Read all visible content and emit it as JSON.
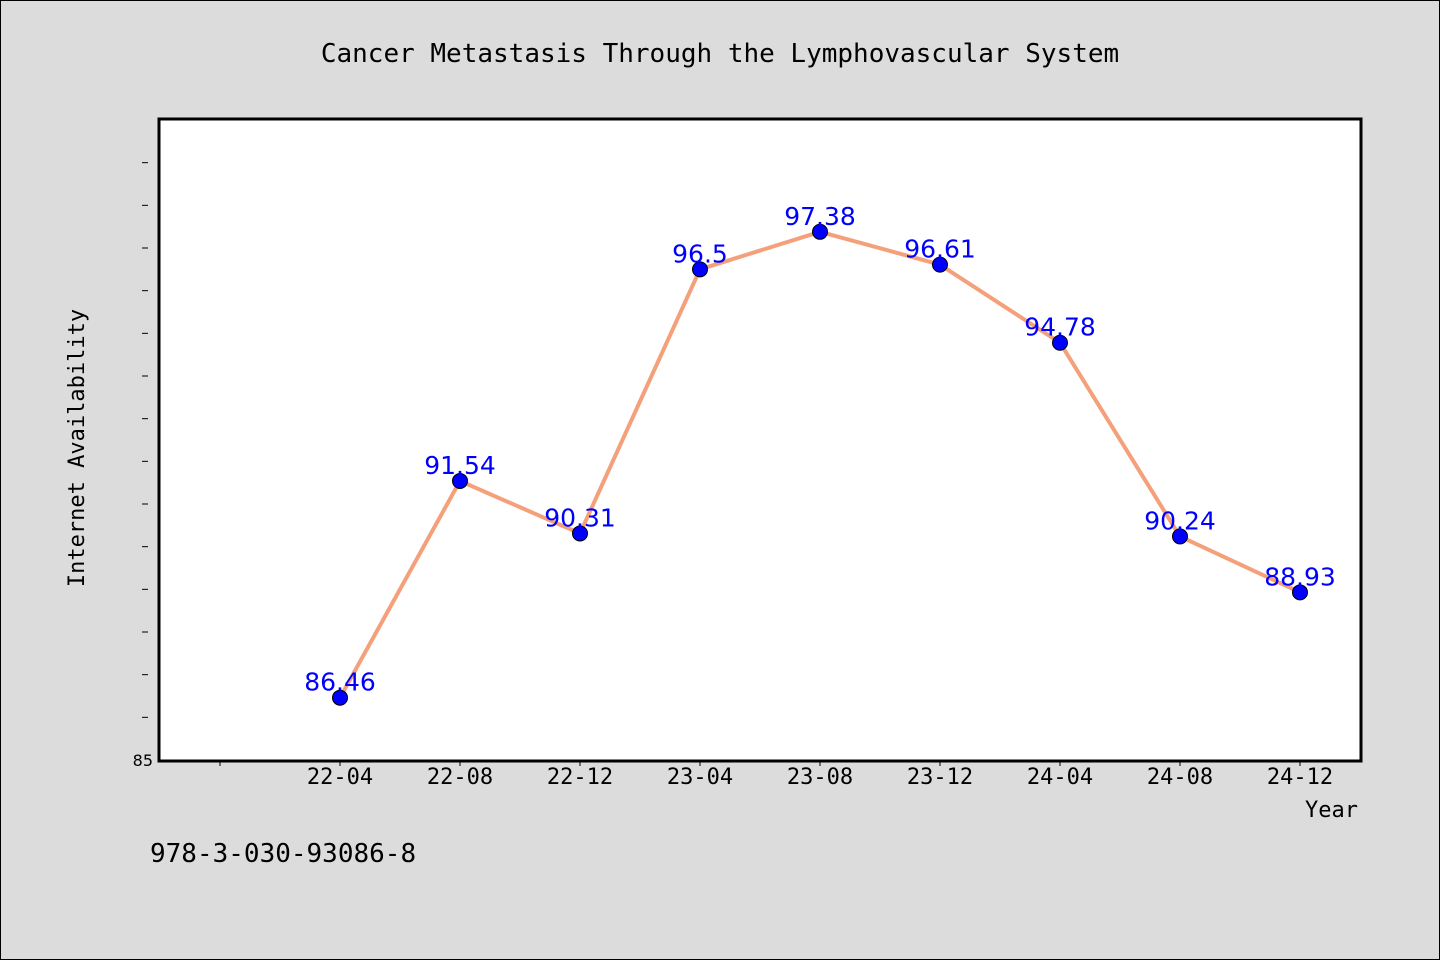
{
  "chart_data": {
    "type": "line",
    "title": "Cancer Metastasis Through the Lymphovascular System",
    "xlabel": "Year",
    "ylabel": "Internet Availability",
    "categories": [
      "22-04",
      "22-08",
      "22-12",
      "23-04",
      "23-08",
      "23-12",
      "24-04",
      "24-08",
      "24-12"
    ],
    "series": [
      {
        "values": [
          86.46,
          91.54,
          90.31,
          96.5,
          97.38,
          96.61,
          94.78,
          90.24,
          88.93
        ],
        "labels": [
          "86.46",
          "91.54",
          "90.31",
          "96.5",
          "97.38",
          "96.61",
          "94.78",
          "90.24",
          "88.93"
        ]
      }
    ],
    "ylim": [
      85,
      100
    ],
    "yticks_labeled": [
      "85"
    ],
    "grid": false,
    "legend": false,
    "colors": {
      "line": "#f4a07a",
      "marker": "#0000ff",
      "data_label": "#0000ff",
      "plot_background": "#ffffff",
      "page_background": "#dcdcdc"
    }
  },
  "footer": {
    "code": "978-3-030-93086-8"
  }
}
